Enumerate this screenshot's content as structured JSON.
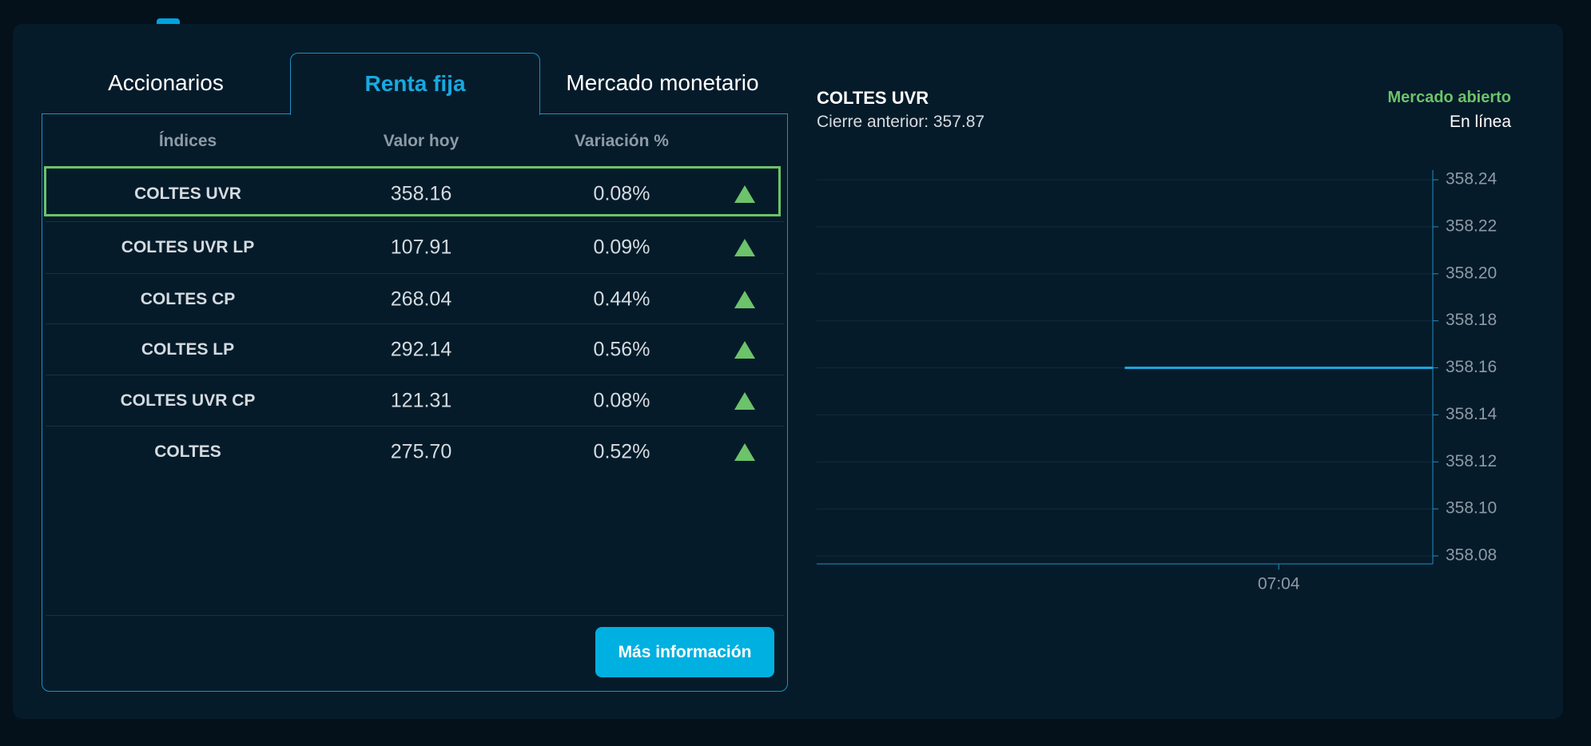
{
  "tabs": [
    "Accionarios",
    "Renta fija",
    "Mercado monetario"
  ],
  "active_tab": 1,
  "table": {
    "headers": [
      "Índices",
      "Valor hoy",
      "Variación %"
    ],
    "rows": [
      [
        "COLTES UVR",
        "358.16",
        "0.08%"
      ],
      [
        "COLTES UVR LP",
        "107.91",
        "0.09%"
      ],
      [
        "COLTES CP",
        "268.04",
        "0.44%"
      ],
      [
        "COLTES LP",
        "292.14",
        "0.56%"
      ],
      [
        "COLTES UVR CP",
        "121.31",
        "0.08%"
      ],
      [
        "COLTES",
        "275.70",
        "0.52%"
      ]
    ],
    "selected_row": 0
  },
  "button": "Más información",
  "chart_data": {
    "type": "line",
    "title": "COLTES UVR",
    "subtitle": "Cierre anterior: 357.87",
    "status": "Mercado abierto",
    "connection": "En línea",
    "x": [
      422,
      426
    ],
    "values": [
      358.16,
      358.16
    ],
    "color": "#1aa6dc",
    "xlim": [
      418,
      426
    ],
    "xticks": [
      {
        "value": 424,
        "label": "07:04"
      }
    ],
    "ylim": [
      358.0766,
      358.2441
    ],
    "yticks": [
      {
        "value": 358.08,
        "label": "358.08"
      },
      {
        "value": 358.1,
        "label": "358.10"
      },
      {
        "value": 358.12,
        "label": "358.12"
      },
      {
        "value": 358.14,
        "label": "358.14"
      },
      {
        "value": 358.16,
        "label": "358.16"
      },
      {
        "value": 358.18,
        "label": "358.18"
      },
      {
        "value": 358.2,
        "label": "358.20"
      },
      {
        "value": 358.22,
        "label": "358.22"
      },
      {
        "value": 358.24,
        "label": "358.24"
      }
    ],
    "grid": true
  }
}
